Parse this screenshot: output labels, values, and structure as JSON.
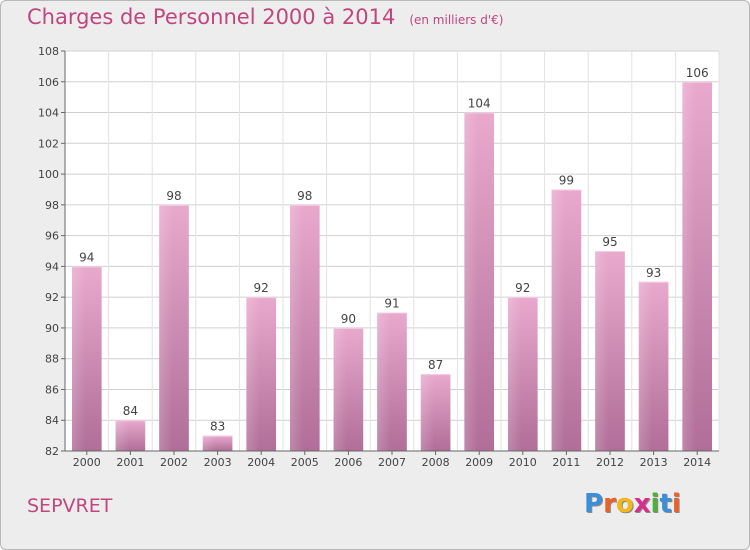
{
  "chart_data": {
    "type": "bar",
    "title": "Charges de Personnel 2000 à 2014",
    "subtitle": "(en milliers d'€)",
    "categories": [
      "2000",
      "2001",
      "2002",
      "2003",
      "2004",
      "2005",
      "2006",
      "2007",
      "2008",
      "2009",
      "2010",
      "2011",
      "2012",
      "2013",
      "2014"
    ],
    "values": [
      94,
      84,
      98,
      83,
      92,
      98,
      90,
      91,
      87,
      104,
      92,
      99,
      95,
      93,
      106
    ],
    "ylim": [
      82,
      108
    ],
    "yticks": [
      "82",
      "84",
      "86",
      "88",
      "90",
      "92",
      "94",
      "96",
      "98",
      "100",
      "102",
      "104",
      "106",
      "108"
    ],
    "grid": true,
    "bar_color": "#d98cb6"
  },
  "footer": {
    "city": "SEPVRET",
    "logo_letters": [
      "P",
      "r",
      "o",
      "x",
      "i",
      "t",
      "i"
    ],
    "logo_colors": [
      "#3a8fd8",
      "#e8622a",
      "#f0b81c",
      "#d5308a",
      "#4fae3c",
      "#3a8fd8",
      "#e8622a"
    ]
  }
}
